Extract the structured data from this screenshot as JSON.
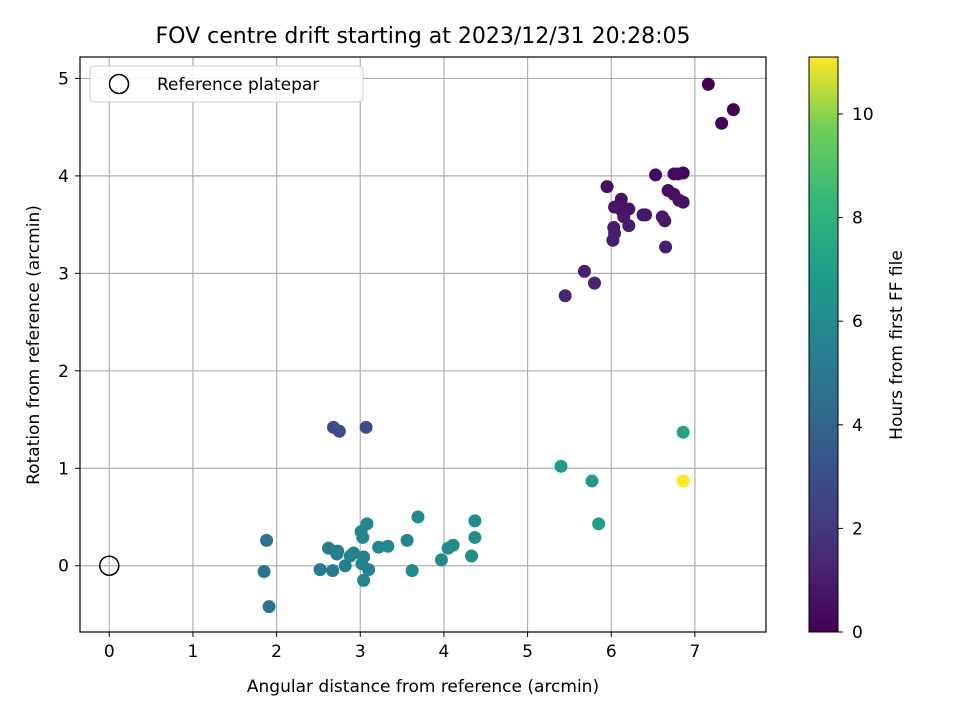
{
  "chart_data": {
    "type": "scatter",
    "title": "FOV centre drift starting at 2023/12/31 20:28:05",
    "xlabel": "Angular distance from reference (arcmin)",
    "ylabel": "Rotation from reference (arcmin)",
    "xlim": [
      -0.35,
      7.85
    ],
    "ylim": [
      -0.68,
      5.22
    ],
    "xticks": [
      "0",
      "1",
      "2",
      "3",
      "4",
      "5",
      "6",
      "7"
    ],
    "yticks": [
      "0",
      "1",
      "2",
      "3",
      "4",
      "5"
    ],
    "grid": true,
    "legend": {
      "location": "upper-left",
      "entries": [
        "Reference platepar"
      ]
    },
    "reference_point": {
      "x": 0,
      "y": 0
    },
    "colorbar": {
      "label": "Hours from first FF file",
      "colormap": "viridis",
      "range": [
        0,
        11.1
      ],
      "ticks": [
        "0",
        "2",
        "4",
        "6",
        "8",
        "10"
      ]
    },
    "series": [
      {
        "points": [
          {
            "x": 7.16,
            "y": 4.94,
            "c": 0.0
          },
          {
            "x": 7.46,
            "y": 4.68,
            "c": 0.05
          },
          {
            "x": 7.32,
            "y": 4.54,
            "c": 0.1
          },
          {
            "x": 6.75,
            "y": 4.02,
            "c": 0.3
          },
          {
            "x": 6.86,
            "y": 4.03,
            "c": 0.3
          },
          {
            "x": 6.53,
            "y": 4.01,
            "c": 0.35
          },
          {
            "x": 6.8,
            "y": 4.02,
            "c": 0.4
          },
          {
            "x": 5.95,
            "y": 3.89,
            "c": 0.5
          },
          {
            "x": 6.68,
            "y": 3.85,
            "c": 0.5
          },
          {
            "x": 6.75,
            "y": 3.81,
            "c": 0.55
          },
          {
            "x": 6.12,
            "y": 3.76,
            "c": 0.6
          },
          {
            "x": 6.81,
            "y": 3.75,
            "c": 0.6
          },
          {
            "x": 6.86,
            "y": 3.73,
            "c": 0.65
          },
          {
            "x": 6.04,
            "y": 3.68,
            "c": 0.7
          },
          {
            "x": 6.21,
            "y": 3.66,
            "c": 0.7
          },
          {
            "x": 6.13,
            "y": 3.64,
            "c": 0.75
          },
          {
            "x": 6.38,
            "y": 3.6,
            "c": 0.8
          },
          {
            "x": 6.41,
            "y": 3.6,
            "c": 0.8
          },
          {
            "x": 6.15,
            "y": 3.58,
            "c": 0.85
          },
          {
            "x": 6.61,
            "y": 3.58,
            "c": 0.85
          },
          {
            "x": 6.64,
            "y": 3.54,
            "c": 0.9
          },
          {
            "x": 6.21,
            "y": 3.49,
            "c": 0.9
          },
          {
            "x": 6.03,
            "y": 3.47,
            "c": 0.95
          },
          {
            "x": 6.04,
            "y": 3.41,
            "c": 1.0
          },
          {
            "x": 6.02,
            "y": 3.34,
            "c": 1.0
          },
          {
            "x": 6.65,
            "y": 3.27,
            "c": 1.05
          },
          {
            "x": 5.68,
            "y": 3.02,
            "c": 1.1
          },
          {
            "x": 5.8,
            "y": 2.9,
            "c": 1.2
          },
          {
            "x": 5.45,
            "y": 2.77,
            "c": 1.3
          },
          {
            "x": 2.68,
            "y": 1.42,
            "c": 2.9
          },
          {
            "x": 3.07,
            "y": 1.42,
            "c": 2.9
          },
          {
            "x": 2.75,
            "y": 1.38,
            "c": 3.0
          },
          {
            "x": 1.88,
            "y": 0.26,
            "c": 4.7
          },
          {
            "x": 1.85,
            "y": -0.06,
            "c": 4.7
          },
          {
            "x": 1.91,
            "y": -0.42,
            "c": 4.8
          },
          {
            "x": 2.62,
            "y": 0.18,
            "c": 5.2
          },
          {
            "x": 2.73,
            "y": 0.15,
            "c": 5.3
          },
          {
            "x": 2.92,
            "y": 0.13,
            "c": 5.4
          },
          {
            "x": 2.72,
            "y": 0.12,
            "c": 5.3
          },
          {
            "x": 2.88,
            "y": 0.1,
            "c": 5.5
          },
          {
            "x": 3.04,
            "y": 0.09,
            "c": 5.5
          },
          {
            "x": 2.52,
            "y": -0.04,
            "c": 5.2
          },
          {
            "x": 2.67,
            "y": -0.05,
            "c": 5.3
          },
          {
            "x": 2.82,
            "y": 0.0,
            "c": 5.4
          },
          {
            "x": 3.02,
            "y": 0.02,
            "c": 5.5
          },
          {
            "x": 3.1,
            "y": -0.04,
            "c": 5.6
          },
          {
            "x": 3.04,
            "y": -0.15,
            "c": 5.6
          },
          {
            "x": 3.01,
            "y": 0.35,
            "c": 5.6
          },
          {
            "x": 3.03,
            "y": 0.29,
            "c": 5.6
          },
          {
            "x": 3.08,
            "y": 0.43,
            "c": 5.7
          },
          {
            "x": 3.22,
            "y": 0.19,
            "c": 5.7
          },
          {
            "x": 3.33,
            "y": 0.2,
            "c": 5.8
          },
          {
            "x": 3.56,
            "y": 0.26,
            "c": 5.8
          },
          {
            "x": 3.69,
            "y": 0.5,
            "c": 5.9
          },
          {
            "x": 3.62,
            "y": -0.05,
            "c": 5.9
          },
          {
            "x": 3.97,
            "y": 0.06,
            "c": 6.0
          },
          {
            "x": 4.05,
            "y": 0.18,
            "c": 6.0
          },
          {
            "x": 4.11,
            "y": 0.21,
            "c": 6.0
          },
          {
            "x": 4.33,
            "y": 0.1,
            "c": 6.1
          },
          {
            "x": 4.37,
            "y": 0.29,
            "c": 6.1
          },
          {
            "x": 4.37,
            "y": 0.46,
            "c": 6.1
          },
          {
            "x": 5.4,
            "y": 1.02,
            "c": 6.8
          },
          {
            "x": 5.77,
            "y": 0.87,
            "c": 6.9
          },
          {
            "x": 5.85,
            "y": 0.43,
            "c": 7.0
          },
          {
            "x": 6.86,
            "y": 1.37,
            "c": 7.2
          },
          {
            "x": 6.86,
            "y": 0.87,
            "c": 11.1
          }
        ]
      }
    ]
  }
}
